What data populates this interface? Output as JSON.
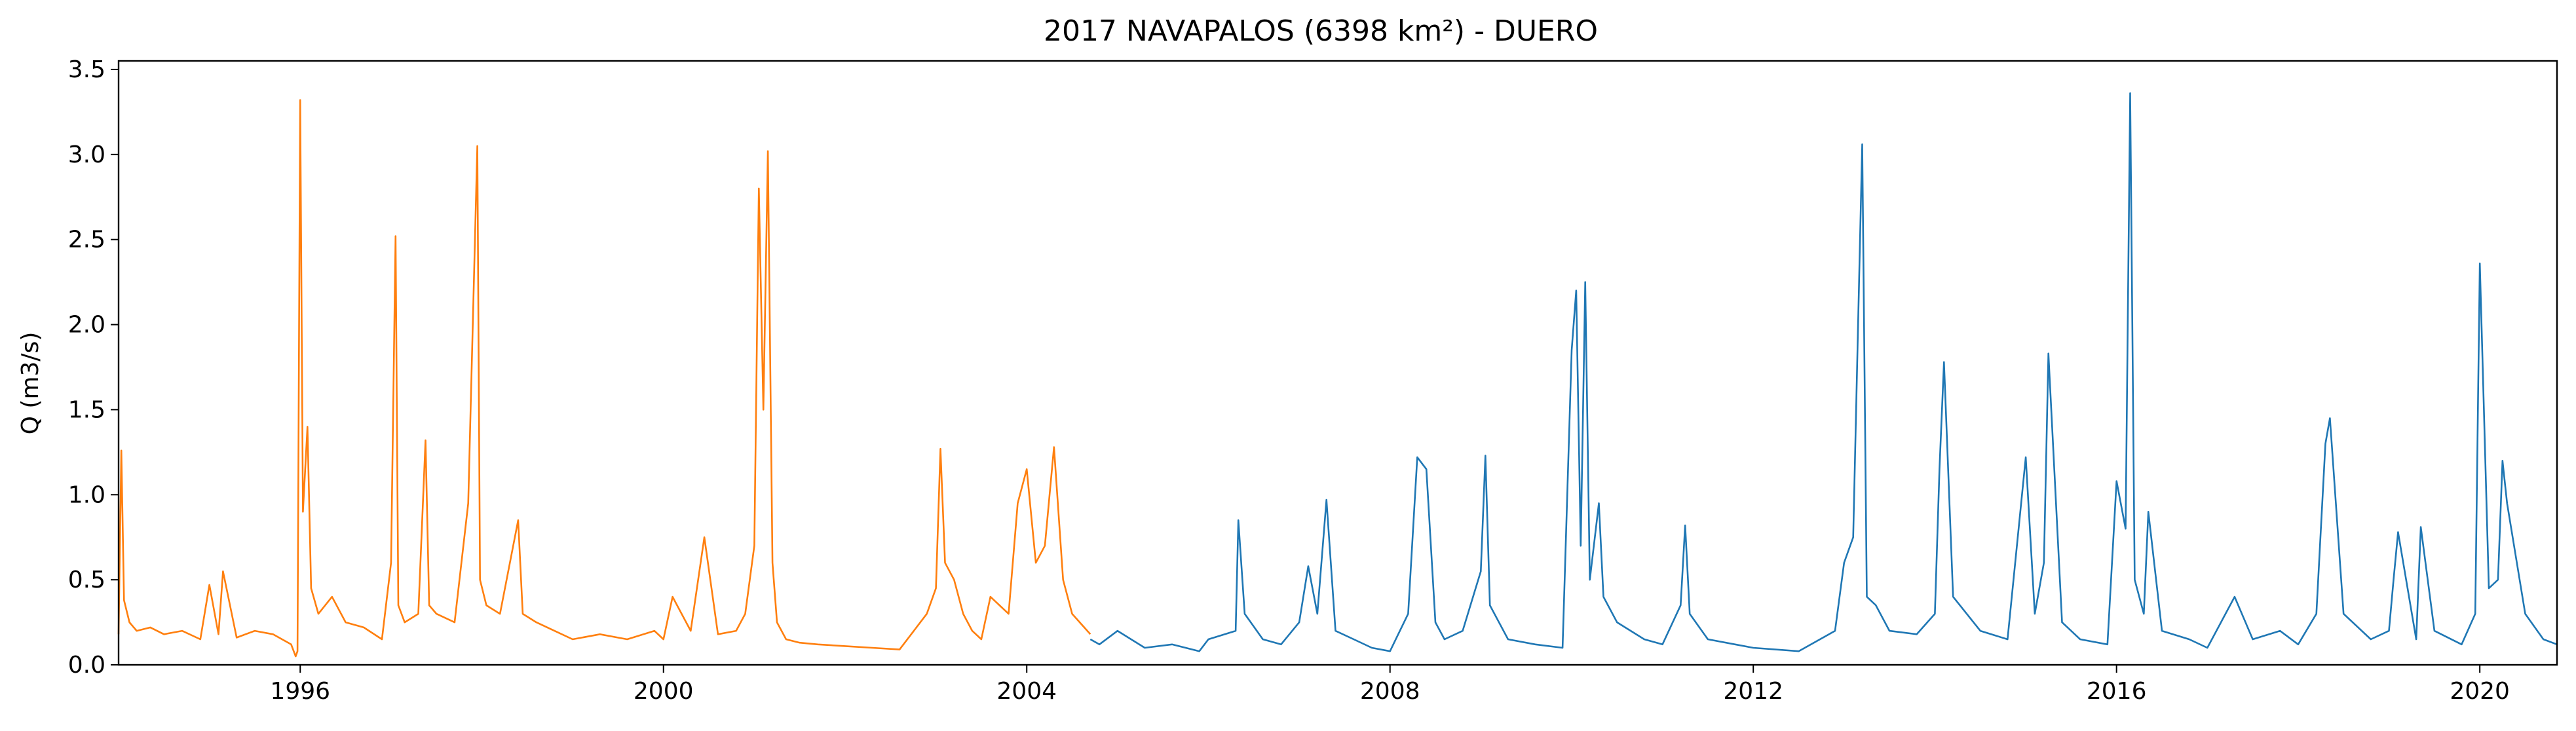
{
  "chart_data": {
    "type": "line",
    "title": "2017 NAVAPALOS (6398 km²) - DUERO",
    "xlabel": "",
    "ylabel": "Q (m3/s)",
    "xlim": [
      1994.0,
      2020.85
    ],
    "ylim": [
      0.0,
      3.55
    ],
    "x_ticks": [
      1996,
      2000,
      2004,
      2008,
      2012,
      2016,
      2020
    ],
    "y_ticks": [
      0.0,
      0.5,
      1.0,
      1.5,
      2.0,
      2.5,
      3.0,
      3.5
    ],
    "y_tick_labels": [
      "0.0",
      "0.5",
      "1.0",
      "1.5",
      "2.0",
      "2.5",
      "3.0",
      "3.5"
    ],
    "grid": false,
    "legend": "none",
    "series": [
      {
        "color": "#ff7f0e",
        "x": [
          1994.0,
          1994.03,
          1994.06,
          1994.12,
          1994.2,
          1994.35,
          1994.5,
          1994.7,
          1994.9,
          1995.0,
          1995.1,
          1995.15,
          1995.3,
          1995.5,
          1995.7,
          1995.9,
          1995.95,
          1995.97,
          1996.0,
          1996.03,
          1996.08,
          1996.12,
          1996.2,
          1996.35,
          1996.5,
          1996.7,
          1996.9,
          1997.0,
          1997.05,
          1997.08,
          1997.15,
          1997.3,
          1997.38,
          1997.42,
          1997.5,
          1997.7,
          1997.85,
          1997.95,
          1997.98,
          1998.05,
          1998.2,
          1998.4,
          1998.45,
          1998.6,
          1998.8,
          1999.0,
          1999.3,
          1999.6,
          1999.9,
          2000.0,
          2000.1,
          2000.3,
          2000.45,
          2000.6,
          2000.8,
          2000.9,
          2001.0,
          2001.05,
          2001.1,
          2001.15,
          2001.2,
          2001.25,
          2001.35,
          2001.5,
          2001.7,
          2002.0,
          2002.3,
          2002.6,
          2002.9,
          2003.0,
          2003.05,
          2003.1,
          2003.2,
          2003.3,
          2003.4,
          2003.5,
          2003.6,
          2003.8,
          2003.9,
          2004.0,
          2004.1,
          2004.2,
          2004.3,
          2004.4,
          2004.5,
          2004.7
        ],
        "y": [
          0.18,
          1.26,
          0.38,
          0.25,
          0.2,
          0.22,
          0.18,
          0.2,
          0.15,
          0.47,
          0.18,
          0.55,
          0.16,
          0.2,
          0.18,
          0.12,
          0.05,
          0.08,
          3.32,
          0.9,
          1.4,
          0.45,
          0.3,
          0.4,
          0.25,
          0.22,
          0.15,
          0.6,
          2.52,
          0.35,
          0.25,
          0.3,
          1.32,
          0.35,
          0.3,
          0.25,
          0.95,
          3.05,
          0.5,
          0.35,
          0.3,
          0.85,
          0.3,
          0.25,
          0.2,
          0.15,
          0.18,
          0.15,
          0.2,
          0.15,
          0.4,
          0.2,
          0.75,
          0.18,
          0.2,
          0.3,
          0.7,
          2.8,
          1.5,
          3.02,
          0.6,
          0.25,
          0.15,
          0.13,
          0.12,
          0.11,
          0.1,
          0.09,
          0.3,
          0.45,
          1.27,
          0.6,
          0.5,
          0.3,
          0.2,
          0.15,
          0.4,
          0.3,
          0.95,
          1.15,
          0.6,
          0.7,
          1.28,
          0.5,
          0.3,
          0.18
        ]
      },
      {
        "color": "#1f77b4",
        "x": [
          2004.7,
          2004.8,
          2005.0,
          2005.3,
          2005.6,
          2005.9,
          2006.0,
          2006.3,
          2006.33,
          2006.4,
          2006.6,
          2006.8,
          2007.0,
          2007.1,
          2007.2,
          2007.3,
          2007.4,
          2007.6,
          2007.8,
          2008.0,
          2008.2,
          2008.3,
          2008.4,
          2008.5,
          2008.6,
          2008.8,
          2009.0,
          2009.05,
          2009.1,
          2009.3,
          2009.6,
          2009.9,
          2010.0,
          2010.05,
          2010.1,
          2010.15,
          2010.2,
          2010.3,
          2010.35,
          2010.5,
          2010.8,
          2011.0,
          2011.2,
          2011.25,
          2011.3,
          2011.5,
          2011.8,
          2012.0,
          2012.5,
          2012.9,
          2013.0,
          2013.1,
          2013.2,
          2013.25,
          2013.35,
          2013.5,
          2013.8,
          2014.0,
          2014.05,
          2014.1,
          2014.2,
          2014.5,
          2014.8,
          2015.0,
          2015.1,
          2015.2,
          2015.25,
          2015.4,
          2015.6,
          2015.9,
          2016.0,
          2016.1,
          2016.15,
          2016.2,
          2016.3,
          2016.35,
          2016.5,
          2016.8,
          2017.0,
          2017.3,
          2017.5,
          2017.8,
          2018.0,
          2018.2,
          2018.3,
          2018.35,
          2018.5,
          2018.8,
          2019.0,
          2019.05,
          2019.1,
          2019.3,
          2019.35,
          2019.5,
          2019.8,
          2019.95,
          2020.0,
          2020.1,
          2020.2,
          2020.25,
          2020.3,
          2020.5,
          2020.7,
          2020.85
        ],
        "y": [
          0.15,
          0.12,
          0.2,
          0.1,
          0.12,
          0.08,
          0.15,
          0.2,
          0.85,
          0.3,
          0.15,
          0.12,
          0.25,
          0.58,
          0.3,
          0.97,
          0.2,
          0.15,
          0.1,
          0.08,
          0.3,
          1.22,
          1.15,
          0.25,
          0.15,
          0.2,
          0.55,
          1.23,
          0.35,
          0.15,
          0.12,
          0.1,
          1.85,
          2.2,
          0.7,
          2.25,
          0.5,
          0.95,
          0.4,
          0.25,
          0.15,
          0.12,
          0.35,
          0.82,
          0.3,
          0.15,
          0.12,
          0.1,
          0.08,
          0.2,
          0.6,
          0.75,
          3.06,
          0.4,
          0.35,
          0.2,
          0.18,
          0.3,
          1.15,
          1.78,
          0.4,
          0.2,
          0.15,
          1.22,
          0.3,
          0.6,
          1.83,
          0.25,
          0.15,
          0.12,
          1.08,
          0.8,
          3.36,
          0.5,
          0.3,
          0.9,
          0.2,
          0.15,
          0.1,
          0.4,
          0.15,
          0.2,
          0.12,
          0.3,
          1.3,
          1.45,
          0.3,
          0.15,
          0.2,
          0.5,
          0.78,
          0.15,
          0.81,
          0.2,
          0.12,
          0.3,
          2.36,
          0.45,
          0.5,
          1.2,
          0.95,
          0.3,
          0.15,
          0.12
        ]
      }
    ]
  }
}
